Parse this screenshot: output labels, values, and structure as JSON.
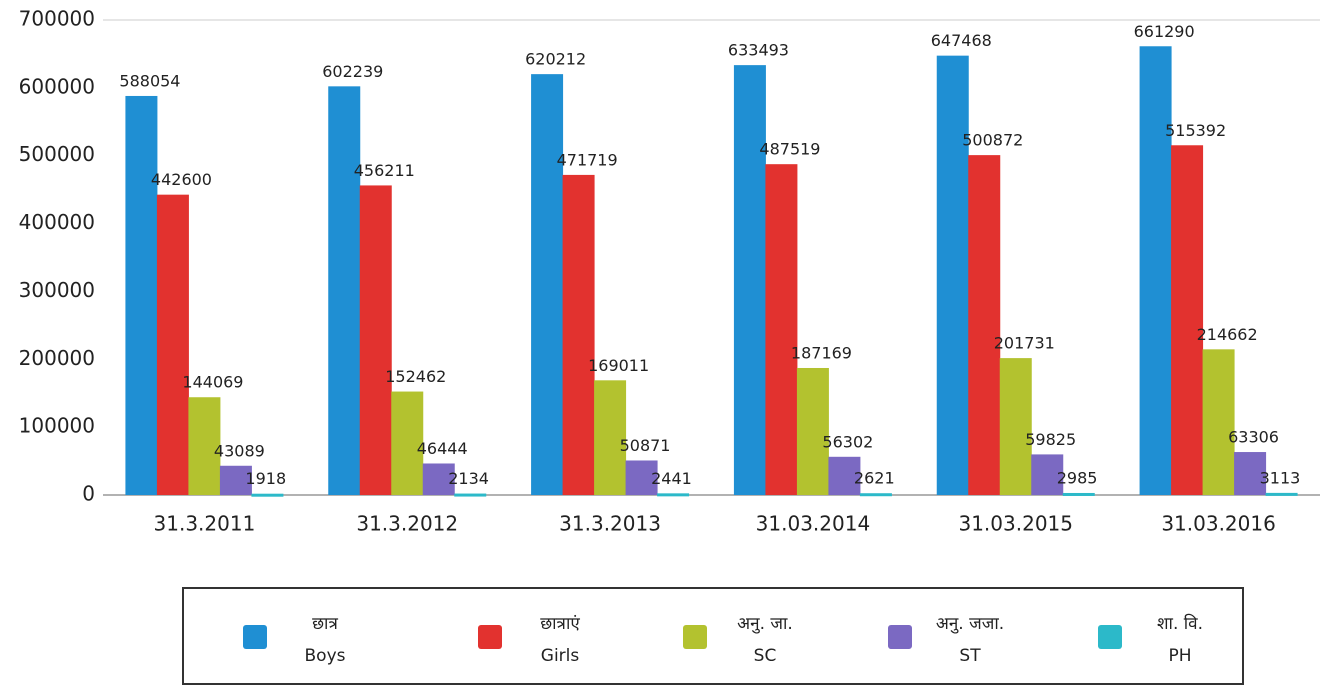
{
  "chart_data": {
    "type": "bar",
    "categories": [
      "31.3.2011",
      "31.3.2012",
      "31.3.2013",
      "31.03.2014",
      "31.03.2015",
      "31.03.2016"
    ],
    "series": [
      {
        "name": "Boys",
        "name_hi": "छात्र",
        "color": "#1f8fd3",
        "values": [
          588054,
          602239,
          620212,
          633493,
          647468,
          661290
        ]
      },
      {
        "name": "Girls",
        "name_hi": "छात्राएं",
        "color": "#e2322f",
        "values": [
          442600,
          456211,
          471719,
          487519,
          500872,
          515392
        ]
      },
      {
        "name": "SC",
        "name_hi": "अनु. जा.",
        "color": "#b3c22f",
        "values": [
          144069,
          152462,
          169011,
          187169,
          201731,
          214662
        ]
      },
      {
        "name": "ST",
        "name_hi": "अनु. जजा.",
        "color": "#7b69c2",
        "values": [
          43089,
          46444,
          50871,
          56302,
          59825,
          63306
        ]
      },
      {
        "name": "PH",
        "name_hi": "शा. वि.",
        "color": "#2cb9c9",
        "values": [
          1918,
          2134,
          2441,
          2621,
          2985,
          3113
        ]
      }
    ],
    "ylim": [
      0,
      700000
    ],
    "yticks": [
      0,
      100000,
      200000,
      300000,
      400000,
      500000,
      600000,
      700000
    ],
    "grid": false,
    "legend": "bottom"
  }
}
